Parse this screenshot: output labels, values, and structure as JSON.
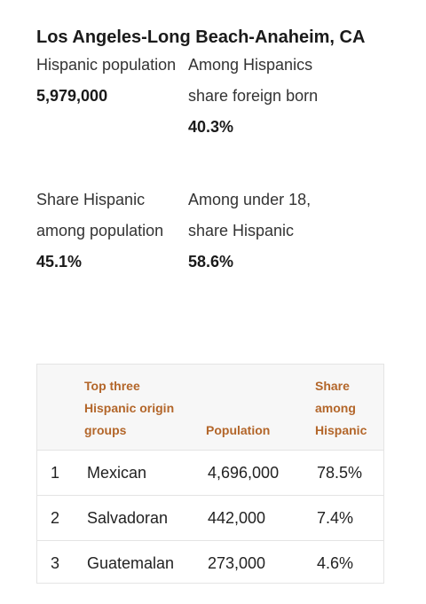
{
  "title": "Los Angeles-Long Beach-Anaheim, CA",
  "stats": [
    {
      "label": "Hispanic population",
      "value": "5,979,000"
    },
    {
      "label": "Among Hispanics share foreign born",
      "value": "40.3%"
    },
    {
      "label": "Share Hispanic among population",
      "value": "45.1%"
    },
    {
      "label": "Among under 18, share Hispanic",
      "value": "58.6%"
    }
  ],
  "table": {
    "headers": {
      "group": "Top three Hispanic origin groups",
      "population": "Population",
      "share": "Share among Hispanic"
    },
    "rows": [
      {
        "rank": "1",
        "name": "Mexican",
        "population": "4,696,000",
        "share": "78.5%"
      },
      {
        "rank": "2",
        "name": "Salvadoran",
        "population": "442,000",
        "share": "7.4%"
      },
      {
        "rank": "3",
        "name": "Guatemalan",
        "population": "273,000",
        "share": "4.6%"
      }
    ]
  }
}
